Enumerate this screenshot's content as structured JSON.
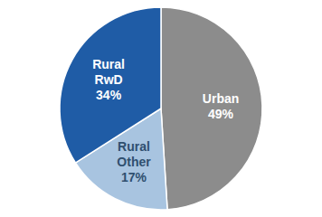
{
  "chart_data": {
    "type": "pie",
    "categories": [
      "Urban",
      "Rural\nOther",
      "Rural\nRwD"
    ],
    "values": [
      49,
      17,
      34
    ],
    "value_labels": [
      "49%",
      "17%",
      "34%"
    ],
    "colors": [
      "#8C8C8C",
      "#A8C4E0",
      "#1F5CA6"
    ],
    "data_labels": true
  }
}
